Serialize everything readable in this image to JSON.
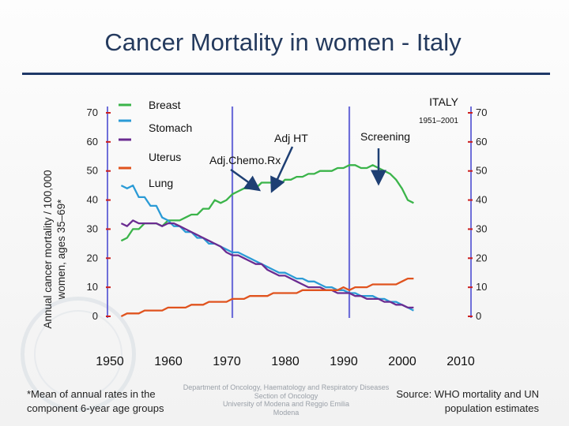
{
  "title": "Cancer Mortality in women - Italy",
  "footnote": "*Mean of annual rates in the component 6-year age groups",
  "department": [
    "Department of Oncology, Haematology and Respiratory Diseases",
    "Section of Oncology",
    "University of Modena and Reggio Emilia",
    "Modena"
  ],
  "source": "Source: WHO mortality and UN population estimates",
  "colors": {
    "breast": "#3bb44a",
    "stomach": "#2b9bd6",
    "uterus": "#6b2c91",
    "lung": "#e0531e",
    "axis": "#6f6fd9",
    "tick": "#cc1f1f",
    "arrow": "#1e3f73"
  },
  "chart_data": {
    "type": "line",
    "title": "Cancer Mortality in women - Italy",
    "ylabel": "Annual cancer mortality / 100,000 women, ages 35–69*",
    "ylabel_lines": [
      "Annual cancer mortality / 100,000",
      "women, ages 35–69*"
    ],
    "xlim": [
      1950,
      2010
    ],
    "ylim": [
      0,
      70
    ],
    "x_ticks": [
      1950,
      1960,
      1970,
      1980,
      1990,
      2000,
      2010
    ],
    "x_tick_labels": [
      "1950",
      "1960",
      "1970",
      "1980",
      "1990",
      "2000",
      "2010"
    ],
    "y_ticks": [
      0,
      10,
      20,
      30,
      40,
      50,
      60,
      70
    ],
    "y_tick_labels": [
      "0",
      "10",
      "20",
      "30",
      "40",
      "50",
      "60",
      "70"
    ],
    "box_label": "ITALY",
    "box_range": "1951–2001",
    "legend": [
      "Breast",
      "Stomach",
      "Uterus",
      "Lung"
    ],
    "annotations": [
      {
        "label": "Adj HT",
        "x": 1979.5,
        "y": 45.5
      },
      {
        "label": "Adj.Chemo.Rx",
        "x": 1974,
        "y": 50
      },
      {
        "label": "Screening",
        "x": 1989,
        "y": 58
      }
    ],
    "series": [
      {
        "name": "Breast",
        "key": "breast",
        "x": [
          1951,
          1952,
          1953,
          1954,
          1955,
          1956,
          1957,
          1958,
          1959,
          1960,
          1961,
          1962,
          1963,
          1964,
          1965,
          1966,
          1967,
          1968,
          1969,
          1970,
          1971,
          1972,
          1973,
          1974,
          1975,
          1976,
          1977,
          1978,
          1979,
          1980,
          1981,
          1982,
          1983,
          1984,
          1985,
          1986,
          1987,
          1988,
          1989,
          1990,
          1991,
          1992,
          1993,
          1994,
          1995,
          1996,
          1997,
          1998,
          1999,
          2000,
          2001
        ],
        "y": [
          26,
          27,
          30,
          30,
          32,
          32,
          32,
          31,
          33,
          33,
          33,
          34,
          35,
          35,
          37,
          37,
          40,
          39,
          40,
          42,
          43,
          44,
          44,
          44,
          46,
          46,
          46,
          45,
          47,
          47,
          48,
          48,
          49,
          49,
          50,
          50,
          50,
          51,
          51,
          52,
          52,
          51,
          51,
          52,
          51,
          50,
          49,
          47,
          44,
          40,
          39
        ]
      },
      {
        "name": "Stomach",
        "key": "stomach",
        "x": [
          1951,
          1952,
          1953,
          1954,
          1955,
          1956,
          1957,
          1958,
          1959,
          1960,
          1961,
          1962,
          1963,
          1964,
          1965,
          1966,
          1967,
          1968,
          1969,
          1970,
          1971,
          1972,
          1973,
          1974,
          1975,
          1976,
          1977,
          1978,
          1979,
          1980,
          1981,
          1982,
          1983,
          1984,
          1985,
          1986,
          1987,
          1988,
          1989,
          1990,
          1991,
          1992,
          1993,
          1994,
          1995,
          1996,
          1997,
          1998,
          1999,
          2000,
          2001
        ],
        "y": [
          45,
          44,
          45,
          41,
          41,
          38,
          38,
          34,
          33,
          31,
          31,
          29,
          29,
          27,
          27,
          25,
          25,
          24,
          23,
          22,
          22,
          21,
          20,
          19,
          18,
          17,
          16,
          15,
          15,
          14,
          13,
          13,
          12,
          12,
          11,
          10,
          10,
          9,
          9,
          8,
          8,
          7,
          7,
          7,
          6,
          6,
          5,
          5,
          4,
          3,
          2
        ]
      },
      {
        "name": "Uterus",
        "key": "uterus",
        "x": [
          1951,
          1952,
          1953,
          1954,
          1955,
          1956,
          1957,
          1958,
          1959,
          1960,
          1961,
          1962,
          1963,
          1964,
          1965,
          1966,
          1967,
          1968,
          1969,
          1970,
          1971,
          1972,
          1973,
          1974,
          1975,
          1976,
          1977,
          1978,
          1979,
          1980,
          1981,
          1982,
          1983,
          1984,
          1985,
          1986,
          1987,
          1988,
          1989,
          1990,
          1991,
          1992,
          1993,
          1994,
          1995,
          1996,
          1997,
          1998,
          1999,
          2000,
          2001
        ],
        "y": [
          32,
          31,
          33,
          32,
          32,
          32,
          32,
          31,
          32,
          32,
          31,
          30,
          29,
          28,
          27,
          26,
          25,
          24,
          22,
          21,
          21,
          20,
          19,
          18,
          18,
          16,
          15,
          14,
          14,
          13,
          12,
          11,
          10,
          10,
          10,
          9,
          9,
          8,
          8,
          8,
          7,
          7,
          6,
          6,
          6,
          5,
          5,
          4,
          4,
          3,
          3
        ]
      },
      {
        "name": "Lung",
        "key": "lung",
        "x": [
          1951,
          1952,
          1953,
          1954,
          1955,
          1956,
          1957,
          1958,
          1959,
          1960,
          1961,
          1962,
          1963,
          1964,
          1965,
          1966,
          1967,
          1968,
          1969,
          1970,
          1971,
          1972,
          1973,
          1974,
          1975,
          1976,
          1977,
          1978,
          1979,
          1980,
          1981,
          1982,
          1983,
          1984,
          1985,
          1986,
          1987,
          1988,
          1989,
          1990,
          1991,
          1992,
          1993,
          1994,
          1995,
          1996,
          1997,
          1998,
          1999,
          2000,
          2001
        ],
        "y": [
          0,
          1,
          1,
          1,
          2,
          2,
          2,
          2,
          3,
          3,
          3,
          3,
          4,
          4,
          4,
          5,
          5,
          5,
          5,
          6,
          6,
          6,
          7,
          7,
          7,
          7,
          8,
          8,
          8,
          8,
          8,
          9,
          9,
          9,
          9,
          9,
          9,
          9,
          10,
          9,
          10,
          10,
          10,
          11,
          11,
          11,
          11,
          11,
          12,
          13,
          13
        ]
      }
    ]
  }
}
